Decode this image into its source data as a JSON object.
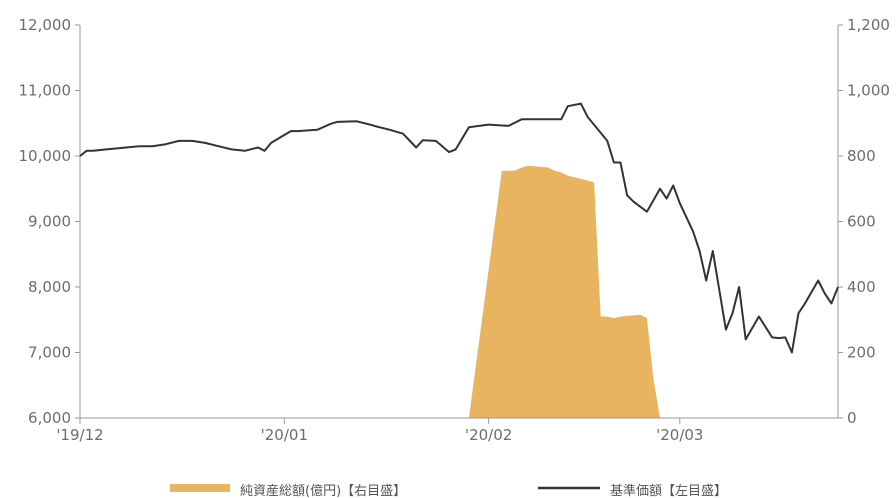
{
  "chart_data": {
    "type": "line+area",
    "title": "",
    "xlabel": "",
    "ylabel": "",
    "x_ticks": [
      "'19/12",
      "'20/01",
      "'20/02",
      "'20/03"
    ],
    "left_axis": {
      "ylim": [
        6000,
        12000
      ],
      "ticks": [
        "6,000",
        "7,000",
        "8,000",
        "9,000",
        "10,000",
        "11,000",
        "12,000"
      ]
    },
    "right_axis": {
      "ylim": [
        0,
        1200
      ],
      "ticks": [
        "0",
        "200",
        "400",
        "600",
        "800",
        "1,000",
        "1,200"
      ]
    },
    "series": [
      {
        "name": "純資産総額(億円)【右目盛】",
        "type": "area",
        "axis": "right",
        "color": "#e8b45f",
        "x": [
          "2020-01-29",
          "2020-02-03",
          "2020-02-04",
          "2020-02-05",
          "2020-02-06",
          "2020-02-07",
          "2020-02-10",
          "2020-02-11",
          "2020-02-12",
          "2020-02-13",
          "2020-02-14",
          "2020-02-17",
          "2020-02-18",
          "2020-02-19",
          "2020-02-20",
          "2020-02-21",
          "2020-02-24",
          "2020-02-25",
          "2020-02-26",
          "2020-02-27"
        ],
        "values": [
          0,
          755,
          755,
          755,
          765,
          770,
          765,
          755,
          750,
          740,
          735,
          720,
          310,
          310,
          305,
          310,
          315,
          305,
          120,
          0
        ]
      },
      {
        "name": "基準価額【左目盛】",
        "type": "line",
        "axis": "left",
        "color": "#333333",
        "x": [
          "2019-12-01",
          "2019-12-02",
          "2019-12-03",
          "2019-12-05",
          "2019-12-08",
          "2019-12-10",
          "2019-12-12",
          "2019-12-14",
          "2019-12-16",
          "2019-12-18",
          "2019-12-20",
          "2019-12-22",
          "2019-12-24",
          "2019-12-26",
          "2019-12-28",
          "2019-12-29",
          "2019-12-30",
          "2020-01-01",
          "2020-01-02",
          "2020-01-03",
          "2020-01-06",
          "2020-01-08",
          "2020-01-09",
          "2020-01-12",
          "2020-01-14",
          "2020-01-15",
          "2020-01-17",
          "2020-01-19",
          "2020-01-21",
          "2020-01-22",
          "2020-01-24",
          "2020-01-26",
          "2020-01-27",
          "2020-01-29",
          "2020-02-01",
          "2020-02-04",
          "2020-02-06",
          "2020-02-07",
          "2020-02-08",
          "2020-02-10",
          "2020-02-12",
          "2020-02-13",
          "2020-02-15",
          "2020-02-16",
          "2020-02-19",
          "2020-02-20",
          "2020-02-21",
          "2020-02-22",
          "2020-02-23",
          "2020-02-25",
          "2020-02-27",
          "2020-02-28",
          "2020-02-29",
          "2020-03-01",
          "2020-03-03",
          "2020-03-04",
          "2020-03-05",
          "2020-03-06",
          "2020-03-08",
          "2020-03-09",
          "2020-03-10",
          "2020-03-11",
          "2020-03-13",
          "2020-03-15",
          "2020-03-16",
          "2020-03-17",
          "2020-03-18",
          "2020-03-19",
          "2020-03-20",
          "2020-03-22",
          "2020-03-23",
          "2020-03-24",
          "2020-03-25"
        ],
        "values": [
          10000,
          10080,
          10080,
          10100,
          10130,
          10150,
          10150,
          10180,
          10230,
          10230,
          10200,
          10150,
          10100,
          10080,
          10130,
          10080,
          10200,
          10320,
          10380,
          10380,
          10400,
          10490,
          10520,
          10530,
          10480,
          10450,
          10400,
          10340,
          10130,
          10240,
          10230,
          10060,
          10100,
          10440,
          10480,
          10460,
          10560,
          10560,
          10560,
          10560,
          10560,
          10760,
          10800,
          10600,
          10230,
          9900,
          9900,
          9400,
          9300,
          9150,
          9500,
          9350,
          9550,
          9280,
          8850,
          8550,
          8100,
          8550,
          7350,
          7600,
          8000,
          7200,
          7550,
          7230,
          7220,
          7230,
          7000,
          7600,
          7750,
          8100,
          7900,
          7750,
          8000
        ]
      }
    ],
    "legend_position": "bottom",
    "grid": false
  }
}
